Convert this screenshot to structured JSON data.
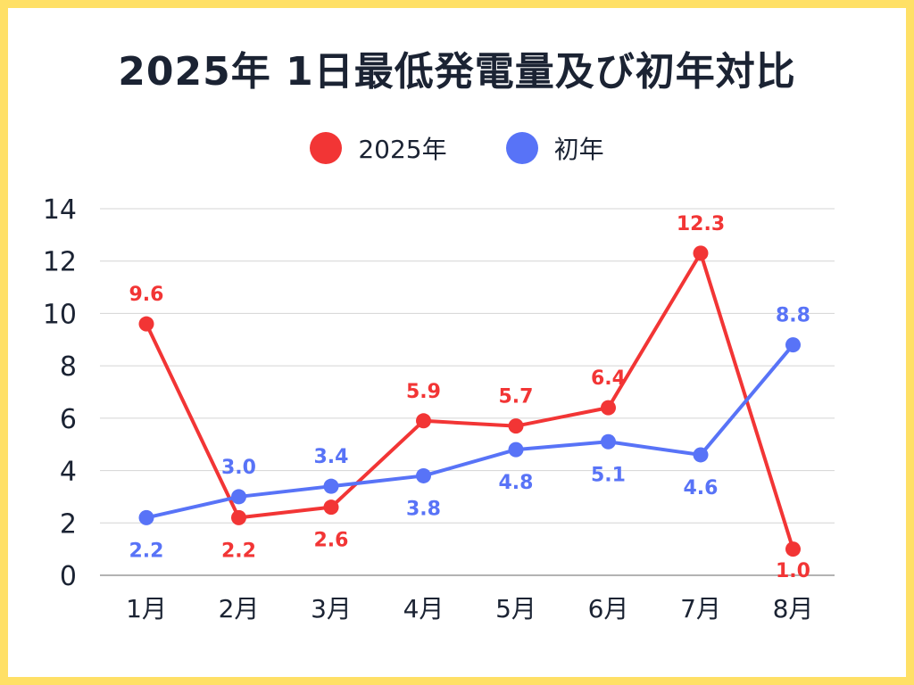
{
  "colors": {
    "series_2025": "#f23535",
    "series_initial": "#5873f7",
    "frame": "#ffe066",
    "text": "#1b2333"
  },
  "chart_data": {
    "type": "line",
    "title": "2025年 1日最低発電量及び初年対比",
    "categories": [
      "1月",
      "2月",
      "3月",
      "4月",
      "5月",
      "6月",
      "7月",
      "8月"
    ],
    "series": [
      {
        "name": "2025年",
        "values": [
          9.6,
          2.2,
          2.6,
          5.9,
          5.7,
          6.4,
          12.3,
          1.0
        ]
      },
      {
        "name": "初年",
        "values": [
          2.2,
          3.0,
          3.4,
          3.8,
          4.8,
          5.1,
          4.6,
          8.8
        ]
      }
    ],
    "labels": [
      [
        "9.6",
        "2.2",
        "2.6",
        "5.9",
        "5.7",
        "6.4",
        "12.3",
        "1.0"
      ],
      [
        "2.2",
        "3.0",
        "3.4",
        "3.8",
        "4.8",
        "5.1",
        "4.6",
        "8.8"
      ]
    ],
    "ylim": [
      0,
      14
    ],
    "yticks": [
      0,
      2,
      4,
      6,
      8,
      10,
      12,
      14
    ],
    "grid": true,
    "legend_position": "top-center"
  }
}
